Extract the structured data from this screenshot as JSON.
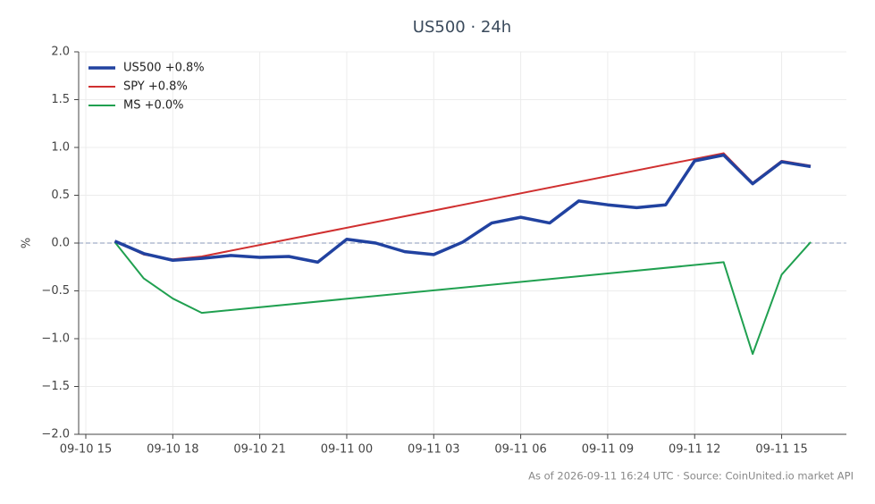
{
  "chart_data": {
    "type": "line",
    "title": "US500 · 24h",
    "y_label": "%",
    "footer": "As of 2026-09-11 16:24 UTC · Source: CoinUnited.io market API",
    "ylim": [
      -2,
      2
    ],
    "yticks": [
      {
        "value": -2,
        "label": "−2.0"
      },
      {
        "value": -1.5,
        "label": "−1.5"
      },
      {
        "value": -1,
        "label": "−1.0"
      },
      {
        "value": -0.5,
        "label": "−0.5"
      },
      {
        "value": 0,
        "label": "0.0"
      },
      {
        "value": 0.5,
        "label": "0.5"
      },
      {
        "value": 1,
        "label": "1.0"
      },
      {
        "value": 1.5,
        "label": "1.5"
      },
      {
        "value": 2,
        "label": "2.0"
      }
    ],
    "xticks": [
      "09-10 15",
      "09-10 18",
      "09-10 21",
      "09-11 00",
      "09-11 03",
      "09-11 06",
      "09-11 09",
      "09-11 12",
      "09-11 15"
    ],
    "grid": true,
    "legend": "upper left",
    "series": [
      {
        "name": "US500 +0.8%",
        "color": "#2142a0",
        "x": [
          "09-10 16",
          "09-10 17",
          "09-10 18",
          "09-10 19",
          "09-10 20",
          "09-10 21",
          "09-10 22",
          "09-10 23",
          "09-11 00",
          "09-11 01",
          "09-11 02",
          "09-11 03",
          "09-11 04",
          "09-11 05",
          "09-11 06",
          "09-11 07",
          "09-11 08",
          "09-11 09",
          "09-11 10",
          "09-11 11",
          "09-11 12",
          "09-11 13",
          "09-11 14",
          "09-11 15",
          "09-11 16"
        ],
        "values": [
          0.02,
          -0.11,
          -0.18,
          -0.16,
          -0.13,
          -0.15,
          -0.14,
          -0.2,
          0.04,
          0.0,
          -0.09,
          -0.12,
          0.01,
          0.21,
          0.27,
          0.21,
          0.44,
          0.4,
          0.37,
          0.4,
          0.86,
          0.92,
          0.62,
          0.85,
          0.8
        ]
      },
      {
        "name": "SPY +0.8%",
        "color": "#d03030",
        "x": [
          "09-10 16",
          "09-10 17",
          "09-10 18",
          "09-10 19",
          "09-11 13",
          "09-11 14",
          "09-11 15",
          "09-11 16"
        ],
        "values": [
          0.02,
          -0.12,
          -0.17,
          -0.14,
          0.94,
          0.63,
          0.86,
          0.81
        ]
      },
      {
        "name": "MS +0.0%",
        "color": "#20a050",
        "x": [
          "09-10 16",
          "09-10 17",
          "09-10 18",
          "09-10 19",
          "09-11 13",
          "09-11 14",
          "09-11 15",
          "09-11 16"
        ],
        "values": [
          0.01,
          -0.37,
          -0.58,
          -0.73,
          -0.2,
          -1.16,
          -0.33,
          0.01
        ]
      }
    ]
  }
}
